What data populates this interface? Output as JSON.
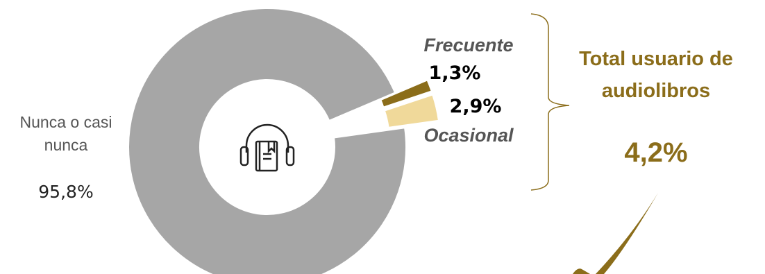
{
  "chart_data": {
    "type": "pie",
    "categories": [
      "Frecuente",
      "Ocasional",
      "Nunca o casi nunca"
    ],
    "values": [
      1.3,
      2.9,
      95.8
    ],
    "value_labels": [
      "1,3%",
      "2,9%",
      "95,8%"
    ],
    "colors": [
      "#8b6d1a",
      "#f0d99a",
      "#a6a6a6"
    ],
    "annotations": [
      "Total usuario de audiolibros",
      "4,2%"
    ]
  }
}
